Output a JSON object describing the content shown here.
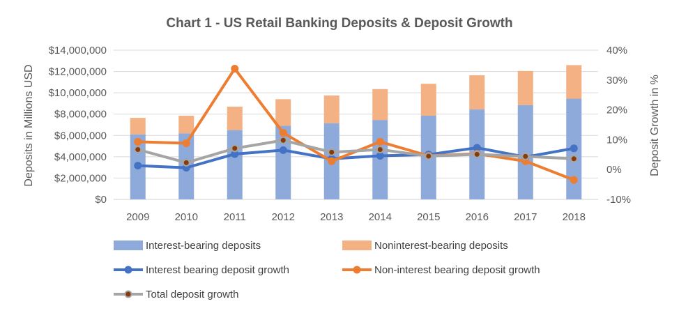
{
  "chart_data": {
    "type": "bar+line",
    "title": "Chart 1 - US Retail Banking Deposits & Deposit Growth",
    "categories": [
      "2009",
      "2010",
      "2011",
      "2012",
      "2013",
      "2014",
      "2015",
      "2016",
      "2017",
      "2018"
    ],
    "y_left": {
      "label": "Deposits in Millions USD",
      "min": 0,
      "max": 14000000,
      "step": 2000000,
      "tick_labels": [
        "$0",
        "$2,000,000",
        "$4,000,000",
        "$6,000,000",
        "$8,000,000",
        "$10,000,000",
        "$12,000,000",
        "$14,000,000"
      ]
    },
    "y_right": {
      "label": "Deposit Growth in %",
      "min": -10,
      "max": 40,
      "step": 10,
      "tick_labels": [
        "-10%",
        "0%",
        "10%",
        "20%",
        "30%",
        "40%"
      ]
    },
    "stacked_bars": [
      {
        "name": "Interest-bearing deposits",
        "color": "#8eaadb",
        "values": [
          6100000,
          6200000,
          6500000,
          6900000,
          7150000,
          7450000,
          7850000,
          8450000,
          8850000,
          9450000
        ]
      },
      {
        "name": "Noninterest-bearing deposits",
        "color": "#f4b183",
        "values": [
          1550000,
          1650000,
          2200000,
          2500000,
          2600000,
          2900000,
          3000000,
          3200000,
          3200000,
          3150000
        ]
      }
    ],
    "lines": [
      {
        "name": "Interest bearing deposit growth",
        "color": "#4472c4",
        "marker_fill": "#4472c4",
        "values": [
          1.3,
          0.6,
          5.2,
          6.5,
          3.6,
          4.6,
          5.0,
          7.3,
          4.2,
          7.1
        ]
      },
      {
        "name": "Non-interest bearing deposit growth",
        "color": "#ed7d31",
        "marker_fill": "#ed7d31",
        "values": [
          9.3,
          8.8,
          33.8,
          12.3,
          2.8,
          9.3,
          4.6,
          5.3,
          2.8,
          -3.5
        ]
      },
      {
        "name": "Total deposit growth",
        "color": "#a5a5a5",
        "marker_fill": "#843c0c",
        "values": [
          6.7,
          2.3,
          7.1,
          9.8,
          5.8,
          6.7,
          4.5,
          5.1,
          4.4,
          3.6
        ]
      }
    ],
    "grid": "horizontal",
    "legend_position": "bottom"
  }
}
